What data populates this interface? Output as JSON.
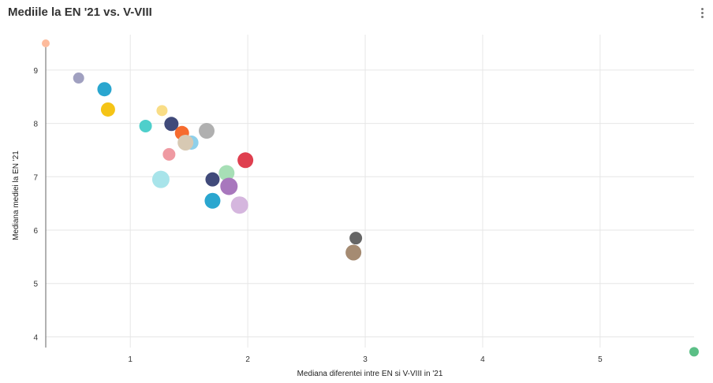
{
  "title": "Mediile la EN '21 vs. V-VIII",
  "menu_icon": "more-vertical-icon",
  "chart_data": {
    "type": "scatter",
    "xlabel": "Mediana diferentei intre EN si V-VIII in '21",
    "ylabel": "Mediana mediei la EN '21",
    "xlim": [
      0.28,
      5.8
    ],
    "ylim": [
      3.8,
      9.5
    ],
    "x_ticks": [
      "1",
      "2",
      "3",
      "4",
      "5"
    ],
    "y_ticks": [
      "4",
      "5",
      "6",
      "7",
      "8",
      "9"
    ],
    "grid": true,
    "points": [
      {
        "x": 0.28,
        "y": 9.5,
        "r": 5,
        "color": "#fdbb9c"
      },
      {
        "x": 0.56,
        "y": 8.85,
        "r": 7,
        "color": "#a0a0c0"
      },
      {
        "x": 0.78,
        "y": 8.64,
        "r": 9,
        "color": "#2aa6cf"
      },
      {
        "x": 0.81,
        "y": 8.26,
        "r": 9,
        "color": "#f5c416"
      },
      {
        "x": 1.13,
        "y": 7.95,
        "r": 8,
        "color": "#4ecfcb"
      },
      {
        "x": 1.27,
        "y": 8.24,
        "r": 7,
        "color": "#f9dd86"
      },
      {
        "x": 1.35,
        "y": 7.99,
        "r": 9,
        "color": "#404a7a"
      },
      {
        "x": 1.44,
        "y": 7.82,
        "r": 9,
        "color": "#f66b2e"
      },
      {
        "x": 1.52,
        "y": 7.64,
        "r": 9,
        "color": "#8ed0ea"
      },
      {
        "x": 1.47,
        "y": 7.64,
        "r": 10,
        "color": "#d7c9b3"
      },
      {
        "x": 1.33,
        "y": 7.42,
        "r": 8,
        "color": "#ef9aa2"
      },
      {
        "x": 1.65,
        "y": 7.86,
        "r": 10,
        "color": "#b0b0b0"
      },
      {
        "x": 1.26,
        "y": 6.95,
        "r": 11,
        "color": "#a8e4ea"
      },
      {
        "x": 1.7,
        "y": 6.95,
        "r": 9,
        "color": "#404a7a"
      },
      {
        "x": 1.82,
        "y": 7.07,
        "r": 10,
        "color": "#a7dfb6"
      },
      {
        "x": 1.84,
        "y": 6.82,
        "r": 11,
        "color": "#a877bd"
      },
      {
        "x": 1.98,
        "y": 7.31,
        "r": 10,
        "color": "#df3f4f"
      },
      {
        "x": 1.7,
        "y": 6.55,
        "r": 10,
        "color": "#2aa6cf"
      },
      {
        "x": 1.93,
        "y": 6.47,
        "r": 11,
        "color": "#d5b6de"
      },
      {
        "x": 2.92,
        "y": 5.85,
        "r": 8,
        "color": "#666666"
      },
      {
        "x": 2.9,
        "y": 5.58,
        "r": 10,
        "color": "#a58b72"
      },
      {
        "x": 5.8,
        "y": 3.72,
        "r": 6,
        "color": "#5bbf86"
      }
    ]
  }
}
